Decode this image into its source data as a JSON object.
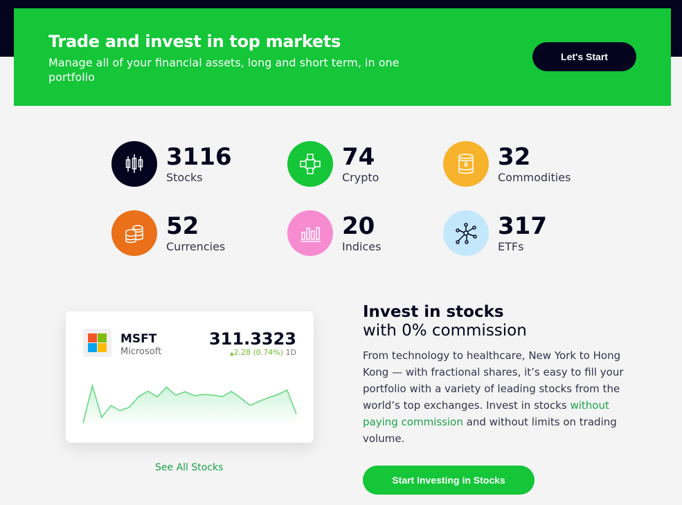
{
  "banner": {
    "title": "Trade and invest in top markets",
    "subtitle": "Manage all of your financial assets, long and short term, in one portfolio",
    "cta": "Let's Start"
  },
  "stats": [
    {
      "value": "3116",
      "label": "Stocks",
      "icon": "candlestick-icon",
      "color": "#04041f"
    },
    {
      "value": "74",
      "label": "Crypto",
      "icon": "blockchain-icon",
      "color": "#14c638"
    },
    {
      "value": "32",
      "label": "Commodities",
      "icon": "oil-barrel-icon",
      "color": "#f7b32b"
    },
    {
      "value": "52",
      "label": "Currencies",
      "icon": "coins-icon",
      "color": "#ea7019"
    },
    {
      "value": "20",
      "label": "Indices",
      "icon": "bar-chart-icon",
      "color": "#f78bd0"
    },
    {
      "value": "317",
      "label": "ETFs",
      "icon": "network-icon",
      "color": "#c4e8fb"
    }
  ],
  "stock_card": {
    "ticker": "MSFT",
    "name": "Microsoft",
    "price": "311.3323",
    "change": "2.28 (0.74%)",
    "period": "1D",
    "sparkline": [
      10,
      175,
      35,
      87,
      65,
      80,
      127,
      150,
      125,
      168,
      132,
      148,
      130,
      136,
      133,
      126,
      149,
      120,
      88,
      105,
      122,
      135,
      155,
      50
    ]
  },
  "see_all": "See All Stocks",
  "invest": {
    "title": "Invest in stocks",
    "subtitle": "with 0% commission",
    "text_before": "From technology to healthcare, New York to Hong Kong — with fractional shares, it’s easy to fill your portfolio with a variety of leading stocks from the world’s top exchanges. Invest in stocks ",
    "link": "without paying commission",
    "text_after": " and without limits on trading volume.",
    "cta": "Start Investing in Stocks"
  }
}
